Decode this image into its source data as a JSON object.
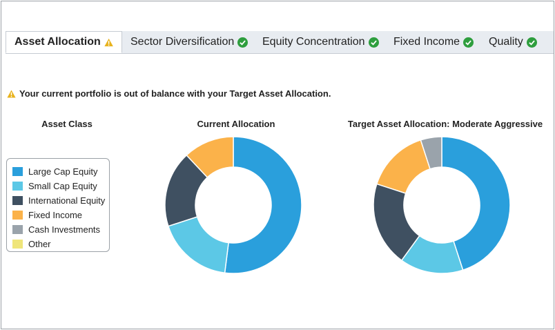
{
  "tabs": [
    {
      "label": "Asset Allocation",
      "status": "warning",
      "active": true
    },
    {
      "label": "Sector Diversification",
      "status": "ok",
      "active": false
    },
    {
      "label": "Equity Concentration",
      "status": "ok",
      "active": false
    },
    {
      "label": "Fixed Income",
      "status": "ok",
      "active": false
    },
    {
      "label": "Quality",
      "status": "ok",
      "active": false
    }
  ],
  "warning": {
    "text": "Your current portfolio is out of balance with your Target Asset Allocation."
  },
  "columns": {
    "asset_class": "Asset Class",
    "current": "Current Allocation",
    "target": "Target Asset Allocation: Moderate Aggressive"
  },
  "colors": {
    "large_cap": "#2a9fdc",
    "small_cap": "#5cc8e6",
    "international": "#3f5061",
    "fixed_income": "#fbb24a",
    "cash": "#9aa3ab",
    "other": "#efe57a",
    "ok": "#2e9e3e",
    "warning": "#e8b21c"
  },
  "chart_data": [
    {
      "type": "pie",
      "title": "Current Allocation",
      "categories": [
        "Large Cap Equity",
        "Small Cap Equity",
        "International Equity",
        "Fixed Income",
        "Cash Investments",
        "Other"
      ],
      "values": [
        52,
        18,
        18,
        12,
        0,
        0
      ]
    },
    {
      "type": "pie",
      "title": "Target Asset Allocation: Moderate Aggressive",
      "categories": [
        "Large Cap Equity",
        "Small Cap Equity",
        "International Equity",
        "Fixed Income",
        "Cash Investments",
        "Other"
      ],
      "values": [
        45,
        15,
        20,
        15,
        5,
        0
      ]
    }
  ],
  "legend": {
    "items": [
      {
        "label": "Large Cap Equity",
        "color": "#2a9fdc"
      },
      {
        "label": "Small Cap Equity",
        "color": "#5cc8e6"
      },
      {
        "label": "International Equity",
        "color": "#3f5061"
      },
      {
        "label": "Fixed Income",
        "color": "#fbb24a"
      },
      {
        "label": "Cash Investments",
        "color": "#9aa3ab"
      },
      {
        "label": "Other",
        "color": "#efe57a"
      }
    ]
  }
}
